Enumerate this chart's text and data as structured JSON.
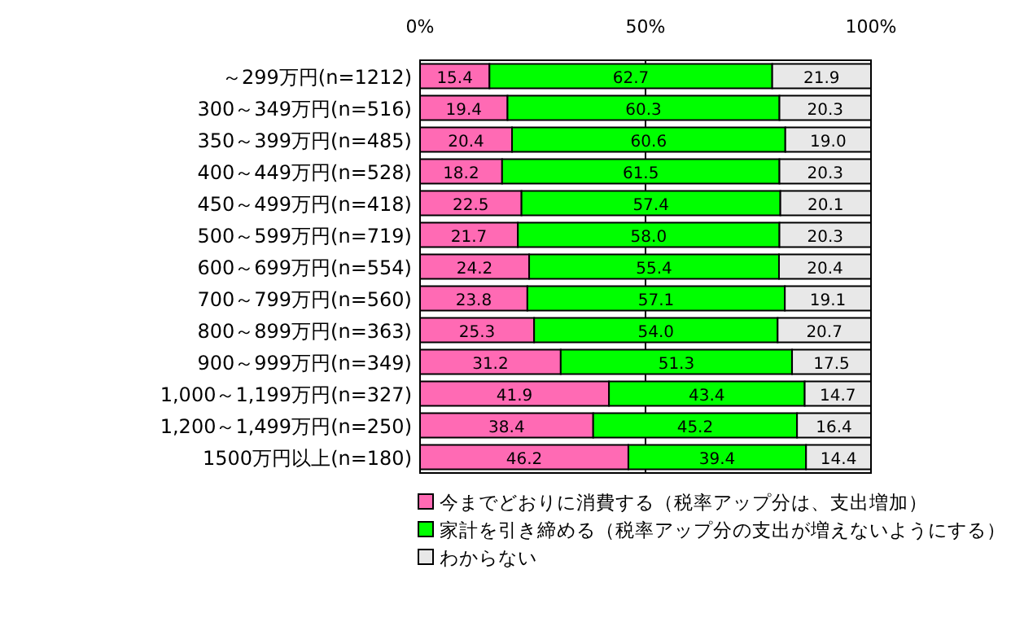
{
  "chart_data": {
    "type": "bar",
    "orientation": "horizontal",
    "stacked": true,
    "grid": "x",
    "legend": "bottom",
    "categories": [
      "～299万円(n=1212)",
      "300～349万円(n=516)",
      "350～399万円(n=485)",
      "400～449万円(n=528)",
      "450～499万円(n=418)",
      "500～599万円(n=719)",
      "600～699万円(n=554)",
      "700～799万円(n=560)",
      "800～899万円(n=363)",
      "900～999万円(n=349)",
      "1,000～1,199万円(n=327)",
      "1,200～1,499万円(n=250)",
      "1500万円以上(n=180)"
    ],
    "xlim": [
      0,
      100
    ],
    "xticks": [
      {
        "value": 0,
        "label": "0%"
      },
      {
        "value": 50,
        "label": "50%"
      },
      {
        "value": 100,
        "label": "100%"
      }
    ],
    "series": [
      {
        "name": "今までどおりに消費する（税率アップ分は、支出増加）",
        "color": "#ff6ab4",
        "values": [
          15.4,
          19.4,
          20.4,
          18.2,
          22.5,
          21.7,
          24.2,
          23.8,
          25.3,
          31.2,
          41.9,
          38.4,
          46.2
        ],
        "value_labels": [
          "15.4",
          "19.4",
          "20.4",
          "18.2",
          "22.5",
          "21.7",
          "24.2",
          "23.8",
          "25.3",
          "31.2",
          "41.9",
          "38.4",
          "46.2"
        ]
      },
      {
        "name": "家計を引き締める（税率アップ分の支出が増えないようにする）",
        "color": "#00ff00",
        "values": [
          62.7,
          60.3,
          60.6,
          61.5,
          57.4,
          58.0,
          55.4,
          57.1,
          54.0,
          51.3,
          43.4,
          45.2,
          39.4
        ],
        "value_labels": [
          "62.7",
          "60.3",
          "60.6",
          "61.5",
          "57.4",
          "58.0",
          "55.4",
          "57.1",
          "54.0",
          "51.3",
          "43.4",
          "45.2",
          "39.4"
        ]
      },
      {
        "name": "わからない",
        "color": "#e8e8e8",
        "values": [
          21.9,
          20.3,
          19.0,
          20.3,
          20.1,
          20.3,
          20.4,
          19.1,
          20.7,
          17.5,
          14.7,
          16.4,
          14.4
        ],
        "value_labels": [
          "21.9",
          "20.3",
          "19.0",
          "20.3",
          "20.1",
          "20.3",
          "20.4",
          "19.1",
          "20.7",
          "17.5",
          "14.7",
          "16.4",
          "14.4"
        ]
      }
    ]
  }
}
